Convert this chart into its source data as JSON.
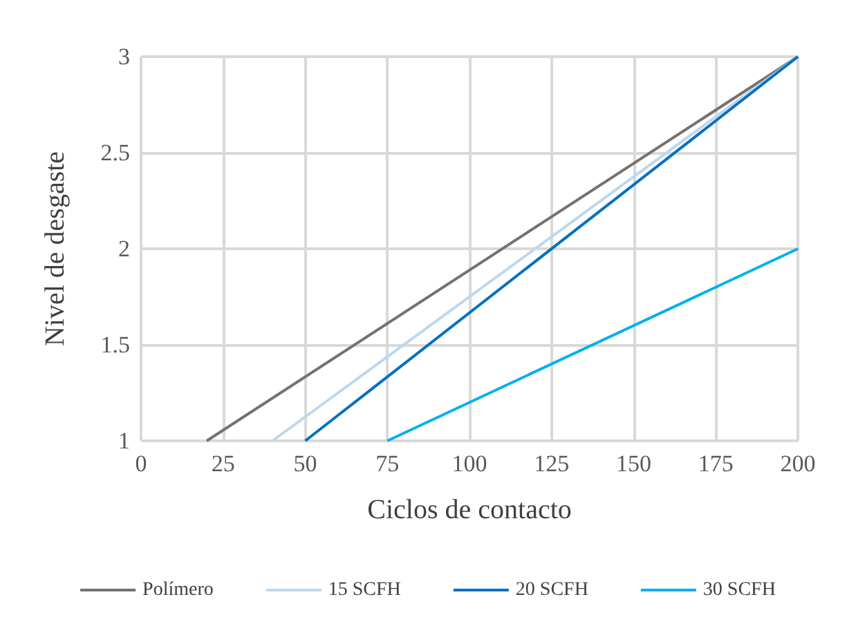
{
  "chart_data": {
    "type": "line",
    "xlabel": "Ciclos de contacto",
    "ylabel": "Nivel de desgaste",
    "series": [
      {
        "name": "Polímero",
        "color": "#767171",
        "x": [
          20,
          200
        ],
        "values": [
          1,
          3
        ]
      },
      {
        "name": "15 SCFH",
        "color": "#bdd7ee",
        "x": [
          40,
          200
        ],
        "values": [
          1,
          3
        ]
      },
      {
        "name": "20 SCFH",
        "color": "#0070c0",
        "x": [
          50,
          200
        ],
        "values": [
          1,
          3
        ]
      },
      {
        "name": "30 SCFH",
        "color": "#00b0f0",
        "x": [
          75,
          200
        ],
        "values": [
          1,
          2
        ]
      }
    ],
    "xlim": [
      0,
      200
    ],
    "xticks": [
      0,
      25,
      50,
      75,
      100,
      125,
      150,
      175,
      200
    ],
    "ylim": [
      1,
      3
    ],
    "yticks": [
      1,
      1.5,
      2,
      2.5,
      3
    ],
    "grid": true,
    "legend": "bottom",
    "marker": "none",
    "line_style": "solid"
  }
}
